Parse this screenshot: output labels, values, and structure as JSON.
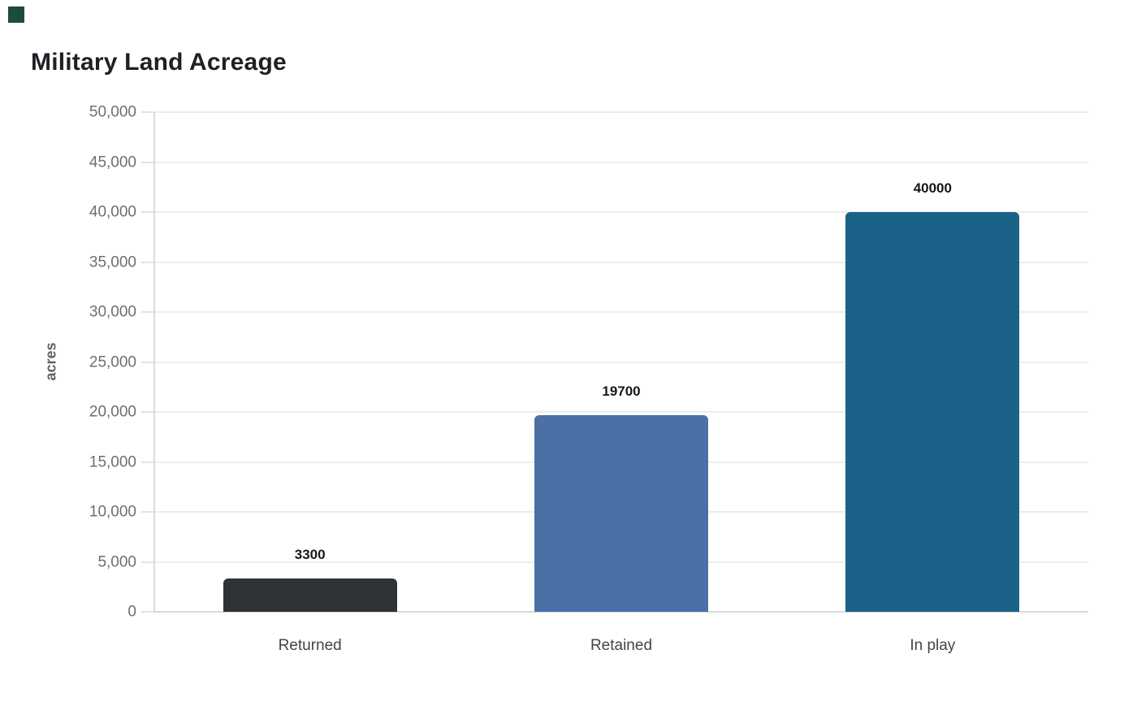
{
  "page": {
    "background": "#ffffff"
  },
  "corner_mark": {
    "color": "#1e4a41"
  },
  "chart_data": {
    "type": "bar",
    "title": "Military Land Acreage",
    "xlabel": "",
    "ylabel": "acres",
    "categories": [
      "Returned",
      "Retained",
      "In play"
    ],
    "values": [
      3300,
      19700,
      40000
    ],
    "bar_value_labels": [
      "3300",
      "19700",
      "40000"
    ],
    "bar_colors": [
      "#2e3338",
      "#4b70a6",
      "#1b6288"
    ],
    "ylim": [
      0,
      50000
    ],
    "ytick_step": 5000,
    "ytick_labels": [
      "0",
      "5,000",
      "10,000",
      "15,000",
      "20,000",
      "25,000",
      "30,000",
      "35,000",
      "40,000",
      "45,000",
      "50,000"
    ],
    "grid": "horizontal",
    "legend": "none",
    "style": {
      "title_color": "#1d2025",
      "ytick_color": "#6e6e6e",
      "xtick_color": "#454545",
      "value_label_color": "#17181a",
      "gridline_color": "#ededed",
      "axis_line_color": "#dadada",
      "ylabel_color": "#5c6065"
    }
  }
}
